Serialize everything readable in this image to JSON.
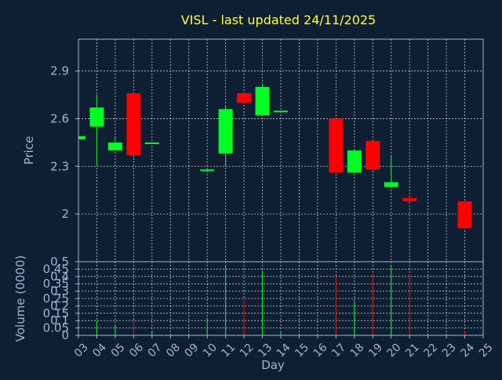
{
  "chart_data": {
    "type": "candlestick",
    "title": "VISL - last updated 24/11/2025",
    "xlabel": "Day",
    "price_axis": {
      "ylabel": "Price",
      "ylim": [
        1.7,
        3.1
      ],
      "ticks": [
        "2",
        "2.3",
        "2.6",
        "2.9"
      ]
    },
    "volume_axis": {
      "ylabel": "Volume (0000)",
      "ylim": [
        0,
        0.5
      ],
      "ticks": [
        "0",
        "0.05",
        "0.1",
        "0.15",
        "0.2",
        "0.25",
        "0.3",
        "0.35",
        "0.4",
        "0.45",
        "0.5"
      ]
    },
    "x_ticks": [
      "03",
      "04",
      "05",
      "06",
      "07",
      "08",
      "09",
      "10",
      "11",
      "12",
      "13",
      "14",
      "15",
      "16",
      "17",
      "18",
      "19",
      "20",
      "21",
      "22",
      "23",
      "24",
      "25"
    ],
    "grid": true,
    "colors": {
      "up": "#00ff22",
      "down": "#ff0000",
      "background": "#0f1f33",
      "title": "#ffff33",
      "axis": "#a0b4cc",
      "grid": "#e5e5e5"
    },
    "candles": [
      {
        "day": "03",
        "open": 2.47,
        "close": 2.49,
        "high": 2.49,
        "low": 2.47,
        "volume": 0.0
      },
      {
        "day": "04",
        "open": 2.55,
        "close": 2.67,
        "high": 2.75,
        "low": 2.31,
        "volume": 0.1
      },
      {
        "day": "05",
        "open": 2.4,
        "close": 2.45,
        "high": 2.48,
        "low": 2.4,
        "volume": 0.07
      },
      {
        "day": "06",
        "open": 2.76,
        "close": 2.37,
        "high": 2.76,
        "low": 2.37,
        "volume": 0.1
      },
      {
        "day": "07",
        "open": 2.44,
        "close": 2.45,
        "high": 2.45,
        "low": 2.44,
        "volume": 0.03
      },
      {
        "day": "10",
        "open": 2.27,
        "close": 2.28,
        "high": 2.28,
        "low": 2.27,
        "volume": 0.12
      },
      {
        "day": "11",
        "open": 2.38,
        "close": 2.66,
        "high": 2.68,
        "low": 2.3,
        "volume": 0.47
      },
      {
        "day": "12",
        "open": 2.76,
        "close": 2.7,
        "high": 2.76,
        "low": 2.7,
        "volume": 0.25
      },
      {
        "day": "13",
        "open": 2.62,
        "close": 2.8,
        "high": 2.82,
        "low": 2.62,
        "volume": 0.44
      },
      {
        "day": "14",
        "open": 2.64,
        "close": 2.65,
        "high": 2.65,
        "low": 2.64,
        "volume": 0.03
      },
      {
        "day": "17",
        "open": 2.6,
        "close": 2.26,
        "high": 2.6,
        "low": 2.26,
        "volume": 0.4
      },
      {
        "day": "18",
        "open": 2.26,
        "close": 2.4,
        "high": 2.4,
        "low": 2.26,
        "volume": 0.23
      },
      {
        "day": "19",
        "open": 2.46,
        "close": 2.28,
        "high": 2.46,
        "low": 2.26,
        "volume": 0.42
      },
      {
        "day": "20",
        "open": 2.17,
        "close": 2.2,
        "high": 2.37,
        "low": 2.17,
        "volume": 0.47
      },
      {
        "day": "21",
        "open": 2.1,
        "close": 2.08,
        "high": 2.1,
        "low": 2.08,
        "volume": 0.42
      },
      {
        "day": "24",
        "open": 2.08,
        "close": 1.91,
        "high": 2.08,
        "low": 1.91,
        "volume": 0.03
      }
    ]
  }
}
